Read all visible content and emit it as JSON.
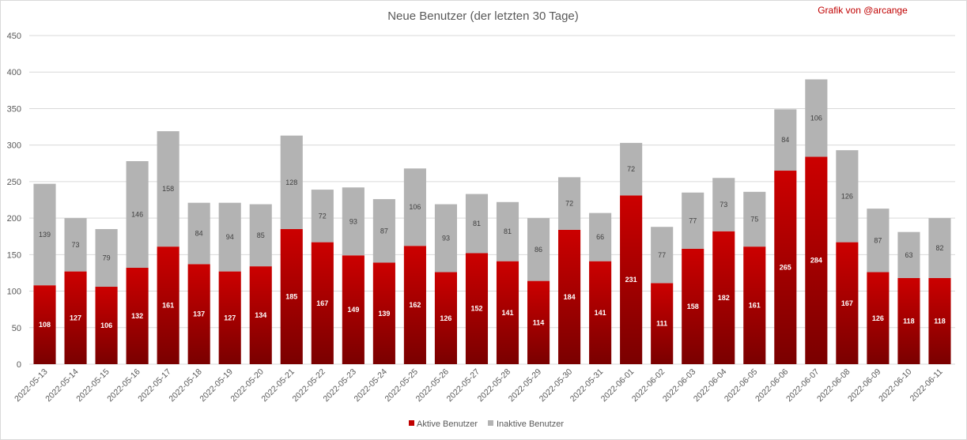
{
  "chart_data": {
    "type": "bar",
    "stacked": true,
    "title": "Neue Benutzer (der letzten 30 Tage)",
    "credit": "Grafik von @arcange",
    "xlabel": "",
    "ylabel": "",
    "ylim": [
      0,
      450
    ],
    "yticks": [
      0,
      50,
      100,
      150,
      200,
      250,
      300,
      350,
      400,
      450
    ],
    "grid": true,
    "legend_position": "bottom",
    "categories": [
      "2022-05-13",
      "2022-05-14",
      "2022-05-15",
      "2022-05-16",
      "2022-05-17",
      "2022-05-18",
      "2022-05-19",
      "2022-05-20",
      "2022-05-21",
      "2022-05-22",
      "2022-05-23",
      "2022-05-24",
      "2022-05-25",
      "2022-05-26",
      "2022-05-27",
      "2022-05-28",
      "2022-05-29",
      "2022-05-30",
      "2022-05-31",
      "2022-06-01",
      "2022-06-02",
      "2022-06-03",
      "2022-06-04",
      "2022-06-05",
      "2022-06-06",
      "2022-06-07",
      "2022-06-08",
      "2022-06-09",
      "2022-06-10",
      "2022-06-11"
    ],
    "series": [
      {
        "name": "Aktive Benutzer",
        "color": "#c00000",
        "values": [
          108,
          127,
          106,
          132,
          161,
          137,
          127,
          134,
          185,
          167,
          149,
          139,
          162,
          126,
          152,
          141,
          114,
          184,
          141,
          231,
          111,
          158,
          182,
          161,
          265,
          284,
          167,
          126,
          118,
          118
        ]
      },
      {
        "name": "Inaktive Benutzer",
        "color": "#b3b3b3",
        "values": [
          139,
          73,
          79,
          146,
          158,
          84,
          94,
          85,
          128,
          72,
          93,
          87,
          106,
          93,
          81,
          81,
          86,
          72,
          66,
          72,
          77,
          77,
          73,
          75,
          84,
          106,
          126,
          87,
          63,
          82
        ]
      }
    ]
  }
}
